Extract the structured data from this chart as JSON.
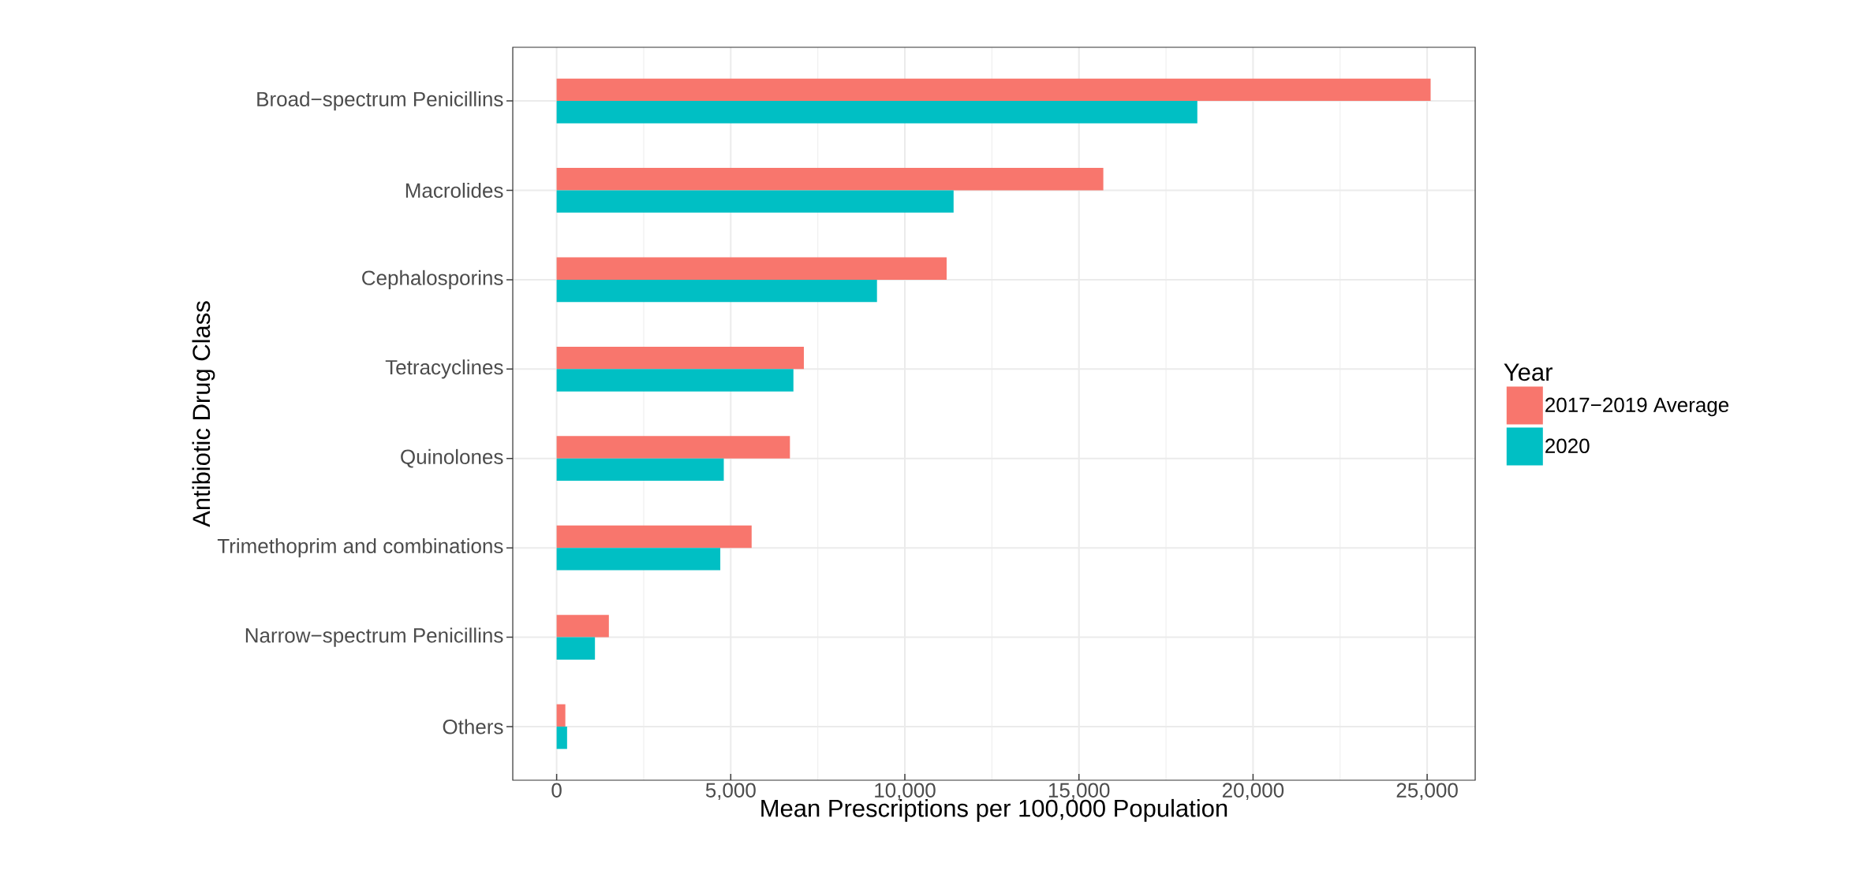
{
  "chart_data": {
    "type": "bar",
    "orientation": "horizontal",
    "xlabel": "Mean Prescriptions per 100,000 Population",
    "ylabel": "Antibiotic Drug Class",
    "legend_title": "Year",
    "categories": [
      "Broad−spectrum Penicillins",
      "Macrolides",
      "Cephalosporins",
      "Tetracyclines",
      "Quinolones",
      "Trimethoprim and combinations",
      "Narrow−spectrum Penicillins",
      "Others"
    ],
    "series": [
      {
        "name": "2017−2019 Average",
        "color": "#f8766d",
        "values": [
          25100,
          15700,
          11200,
          7100,
          6700,
          5600,
          1500,
          250
        ]
      },
      {
        "name": "2020",
        "color": "#00bfc4",
        "values": [
          18400,
          11400,
          9200,
          6800,
          4800,
          4700,
          1100,
          300
        ]
      }
    ],
    "xlim": [
      -1260,
      26380
    ],
    "xticks": [
      0,
      {
        "value": 5000,
        "label": "5,000"
      },
      {
        "value": 10000,
        "label": "10,000"
      },
      {
        "value": 15000,
        "label": "15,000"
      },
      {
        "value": 20000,
        "label": "20,000"
      },
      {
        "value": 25000,
        "label": "25,000"
      }
    ],
    "grid": true,
    "legend": "right"
  }
}
